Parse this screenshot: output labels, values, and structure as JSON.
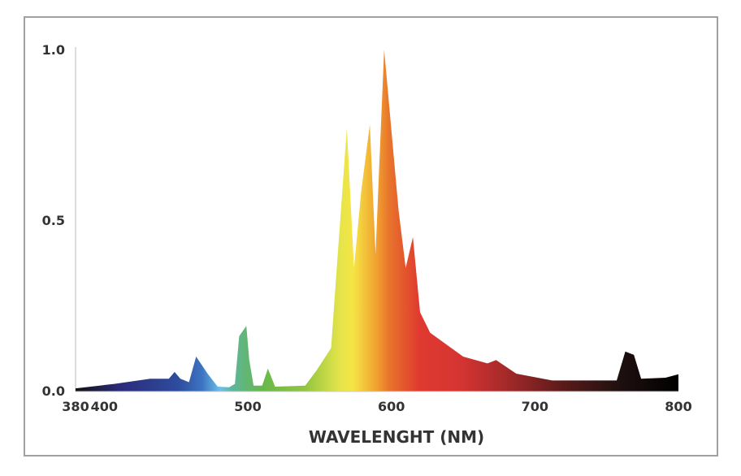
{
  "chart_data": {
    "type": "area",
    "title": "",
    "xlabel": "WAVELENGHT (NM)",
    "ylabel": "",
    "xlim": [
      380,
      800
    ],
    "ylim": [
      0,
      1.0
    ],
    "x_ticks": [
      380,
      400,
      500,
      600,
      700,
      800
    ],
    "y_ticks": [
      "0.0",
      "0.5",
      "1.0"
    ],
    "grid": false,
    "fill": "visible-spectrum gradient",
    "x": [
      380,
      407,
      432,
      445,
      449,
      453,
      459,
      464,
      472,
      479,
      487,
      491,
      494,
      499,
      501,
      504,
      510,
      514,
      519,
      540,
      548,
      558,
      562,
      569,
      574,
      579,
      585,
      589,
      595,
      605,
      610,
      615,
      620,
      627,
      650,
      667,
      673,
      687,
      712,
      746,
      757,
      763,
      769,
      774,
      791,
      800
    ],
    "y": [
      0.007,
      0.02,
      0.035,
      0.035,
      0.055,
      0.035,
      0.025,
      0.1,
      0.05,
      0.012,
      0.01,
      0.02,
      0.16,
      0.19,
      0.09,
      0.015,
      0.015,
      0.065,
      0.012,
      0.015,
      0.06,
      0.125,
      0.36,
      0.77,
      0.36,
      0.585,
      0.78,
      0.4,
      1.0,
      0.53,
      0.36,
      0.45,
      0.23,
      0.17,
      0.1,
      0.08,
      0.09,
      0.05,
      0.03,
      0.03,
      0.03,
      0.115,
      0.105,
      0.035,
      0.038,
      0.048
    ]
  }
}
